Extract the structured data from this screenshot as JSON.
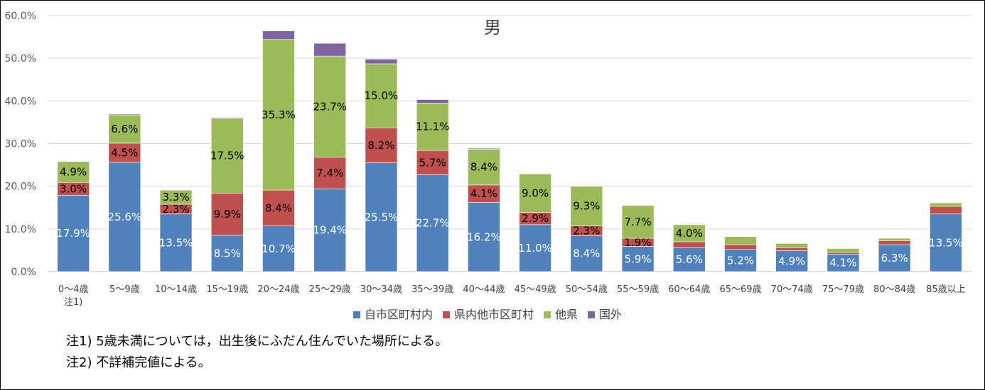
{
  "chart_data": {
    "type": "bar",
    "stacked": true,
    "title": "男",
    "categories": [
      "0～4歳\n注1)",
      "5～9歳",
      "10～14歳",
      "15～19歳",
      "20～24歳",
      "25～29歳",
      "30～34歳",
      "35～39歳",
      "40～44歳",
      "45～49歳",
      "50～54歳",
      "55～59歳",
      "60～64歳",
      "65～69歳",
      "70～74歳",
      "75～79歳",
      "80～84歳",
      "85歳以上"
    ],
    "series": [
      {
        "name": "自市区町村内",
        "color": "#4f81bd",
        "values": [
          17.9,
          25.6,
          13.5,
          8.5,
          10.7,
          19.4,
          25.5,
          22.7,
          16.2,
          11.0,
          8.4,
          5.9,
          5.6,
          5.2,
          4.9,
          4.1,
          6.3,
          13.5
        ]
      },
      {
        "name": "県内他市区町村",
        "color": "#c0504d",
        "values": [
          3.0,
          4.5,
          2.3,
          9.9,
          8.4,
          7.4,
          8.2,
          5.7,
          4.1,
          2.9,
          2.3,
          1.9,
          1.4,
          1.1,
          0.7,
          0.4,
          0.9,
          1.8
        ]
      },
      {
        "name": "他県",
        "color": "#9bbb59",
        "values": [
          4.9,
          6.6,
          3.3,
          17.5,
          35.3,
          23.7,
          15.0,
          11.1,
          8.4,
          9.0,
          9.3,
          7.7,
          4.0,
          1.9,
          1.0,
          0.9,
          0.6,
          0.8
        ]
      },
      {
        "name": "国外",
        "color": "#8064a2",
        "values": [
          0.1,
          0.2,
          0.1,
          0.2,
          2.0,
          3.0,
          1.1,
          0.8,
          0.2,
          0.1,
          0.1,
          0.1,
          0.1,
          0.1,
          0.0,
          0.0,
          0.0,
          0.0
        ]
      }
    ],
    "data_labels": [
      [
        "17.9%",
        "25.6%",
        "13.5%",
        "8.5%",
        "10.7%",
        "19.4%",
        "25.5%",
        "22.7%",
        "16.2%",
        "11.0%",
        "8.4%",
        "5.9%",
        "5.6%",
        "5.2%",
        "4.9%",
        "4.1%",
        "6.3%",
        "13.5%"
      ],
      [
        "3.0%",
        "4.5%",
        "2.3%",
        "9.9%",
        "8.4%",
        "7.4%",
        "8.2%",
        "5.7%",
        "4.1%",
        "2.9%",
        "2.3%",
        "1.9%",
        "",
        "",
        "",
        "",
        "",
        ""
      ],
      [
        "4.9%",
        "6.6%",
        "3.3%",
        "17.5%",
        "35.3%",
        "23.7%",
        "15.0%",
        "11.1%",
        "8.4%",
        "9.0%",
        "9.3%",
        "7.7%",
        "4.0%",
        "",
        "",
        "",
        "",
        ""
      ],
      [
        "",
        "",
        "",
        "",
        "",
        "",
        "",
        "",
        "",
        "",
        "",
        "",
        "",
        "",
        "",
        "",
        "",
        ""
      ]
    ],
    "ylim": [
      0,
      60
    ],
    "yticks": [
      "0.0%",
      "10.0%",
      "20.0%",
      "30.0%",
      "40.0%",
      "50.0%",
      "60.0%"
    ],
    "grid": true,
    "legend": "bottom"
  },
  "notes": [
    "注1) 5歳未満については，出生後にふだん住んでいた場所による。",
    "注2) 不詳補完値による。"
  ]
}
